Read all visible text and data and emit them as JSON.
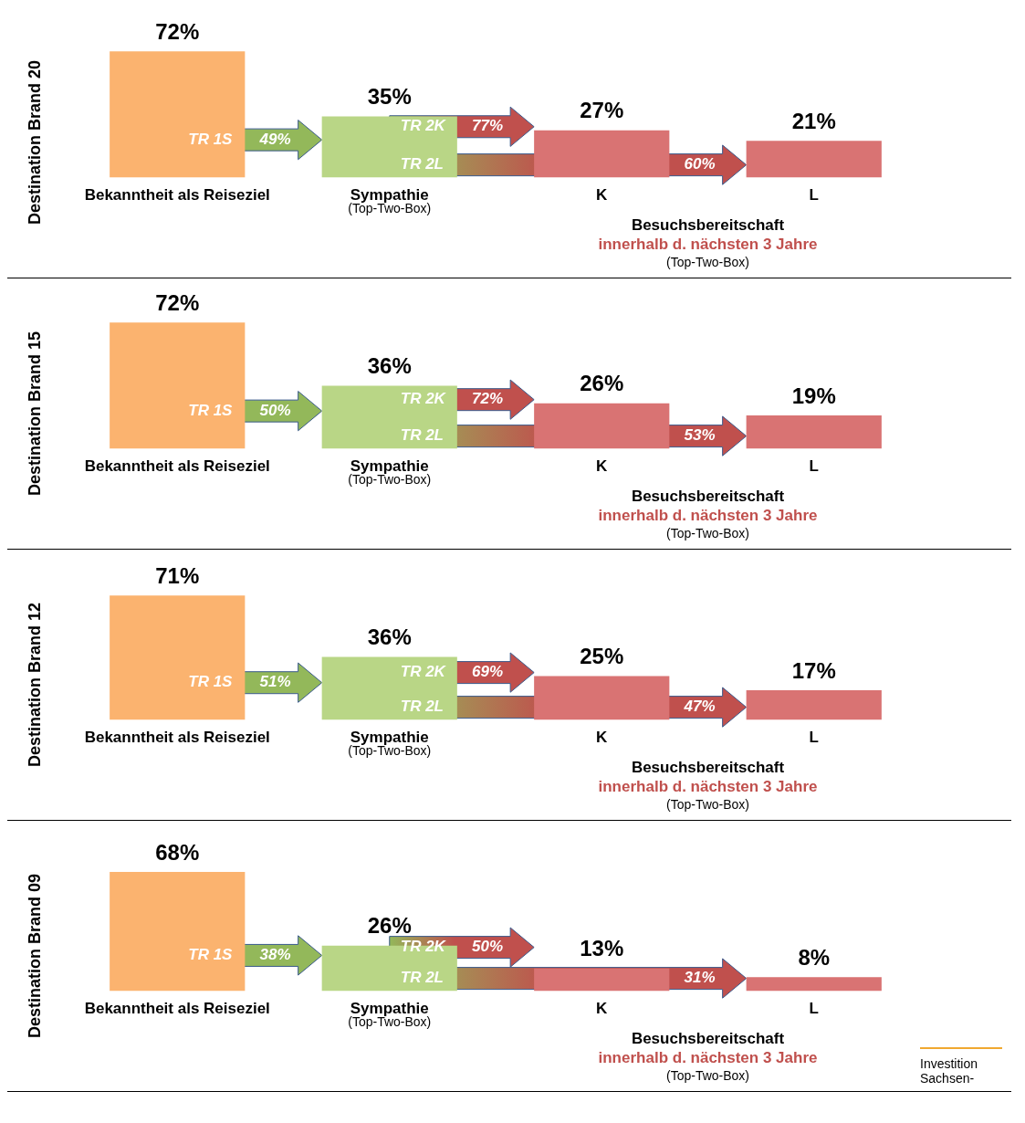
{
  "chart_data": [
    {
      "type": "bar",
      "ylabel": "Destination Brand 20",
      "categories": [
        "Bekanntheit als Reiseziel",
        "Sympathie",
        "K",
        "L"
      ],
      "values": [
        72,
        35,
        27,
        21
      ],
      "colors": [
        "#fbb36f",
        "#b9d686",
        "#d97373",
        "#d97373"
      ],
      "value_labels": [
        "72%",
        "35%",
        "27%",
        "21%"
      ],
      "annotations": [
        "TR 1S 49%",
        "TR 2K 77%",
        "TR 2L 60%",
        "(Top-Two-Box)",
        "Besuchsbereitschaft",
        "innerhalb d. nächsten 3 Jahre",
        "(Top-Two-Box)"
      ],
      "tick_labels": "x",
      "grid": false,
      "legend": false
    },
    {
      "type": "bar",
      "ylabel": "Destination Brand 15",
      "categories": [
        "Bekanntheit als Reiseziel",
        "Sympathie",
        "K",
        "L"
      ],
      "values": [
        72,
        36,
        26,
        19
      ],
      "colors": [
        "#fbb36f",
        "#b9d686",
        "#d97373",
        "#d97373"
      ],
      "value_labels": [
        "72%",
        "36%",
        "26%",
        "19%"
      ],
      "annotations": [
        "TR 1S 50%",
        "TR 2K 72%",
        "TR 2L 53%",
        "(Top-Two-Box)",
        "Besuchsbereitschaft",
        "innerhalb d. nächsten 3 Jahre",
        "(Top-Two-Box)"
      ],
      "tick_labels": "x",
      "grid": false,
      "legend": false
    },
    {
      "type": "bar",
      "ylabel": "Destination Brand 12",
      "categories": [
        "Bekanntheit als Reiseziel",
        "Sympathie",
        "K",
        "L"
      ],
      "values": [
        71,
        36,
        25,
        17
      ],
      "colors": [
        "#fbb36f",
        "#b9d686",
        "#d97373",
        "#d97373"
      ],
      "value_labels": [
        "71%",
        "36%",
        "25%",
        "17%"
      ],
      "annotations": [
        "TR 1S 51%",
        "TR 2K 69%",
        "TR 2L 47%",
        "(Top-Two-Box)",
        "Besuchsbereitschaft",
        "innerhalb d. nächsten 3 Jahre",
        "(Top-Two-Box)"
      ],
      "tick_labels": "x",
      "grid": false,
      "legend": false
    },
    {
      "type": "bar",
      "ylabel": "Destination Brand 09",
      "categories": [
        "Bekanntheit als Reiseziel",
        "Sympathie",
        "K",
        "L"
      ],
      "values": [
        68,
        26,
        13,
        8
      ],
      "colors": [
        "#fbb36f",
        "#b9d686",
        "#d97373",
        "#d97373"
      ],
      "value_labels": [
        "68%",
        "26%",
        "13%",
        "8%"
      ],
      "annotations": [
        "TR 1S 38%",
        "TR 2K 50%",
        "TR 2L 31%",
        "(Top-Two-Box)",
        "Besuchsbereitschaft",
        "innerhalb d. nächsten 3 Jahre",
        "(Top-Two-Box)",
        "Investition",
        "Sachsen-"
      ],
      "tick_labels": "x",
      "grid": false,
      "legend": false
    }
  ]
}
